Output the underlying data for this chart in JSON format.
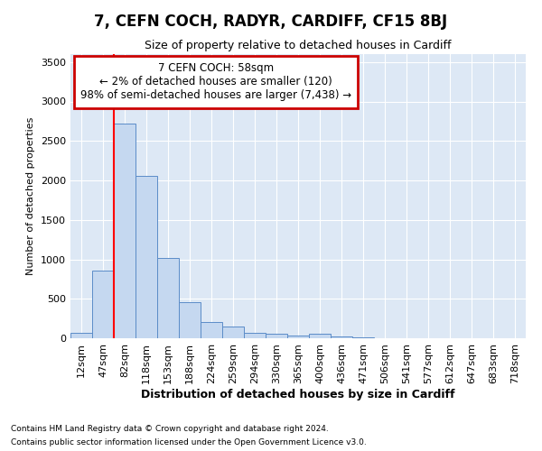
{
  "title": "7, CEFN COCH, RADYR, CARDIFF, CF15 8BJ",
  "subtitle": "Size of property relative to detached houses in Cardiff",
  "xlabel": "Distribution of detached houses by size in Cardiff",
  "ylabel": "Number of detached properties",
  "footnote1": "Contains HM Land Registry data © Crown copyright and database right 2024.",
  "footnote2": "Contains public sector information licensed under the Open Government Licence v3.0.",
  "bar_labels": [
    "12sqm",
    "47sqm",
    "82sqm",
    "118sqm",
    "153sqm",
    "188sqm",
    "224sqm",
    "259sqm",
    "294sqm",
    "330sqm",
    "365sqm",
    "400sqm",
    "436sqm",
    "471sqm",
    "506sqm",
    "541sqm",
    "577sqm",
    "612sqm",
    "647sqm",
    "683sqm",
    "718sqm"
  ],
  "bar_values": [
    65,
    855,
    2720,
    2060,
    1020,
    455,
    205,
    145,
    70,
    55,
    40,
    55,
    20,
    8,
    5,
    4,
    3,
    2,
    2,
    1,
    1
  ],
  "bar_color": "#c5d8f0",
  "bar_edgecolor": "#5b8cc8",
  "background_color": "#dde8f5",
  "red_line_x": 1.5,
  "annotation_title": "7 CEFN COCH: 58sqm",
  "annotation_line1": "← 2% of detached houses are smaller (120)",
  "annotation_line2": "98% of semi-detached houses are larger (7,438) →",
  "annotation_box_facecolor": "#ffffff",
  "annotation_box_edgecolor": "#cc0000",
  "ylim": [
    0,
    3600
  ],
  "yticks": [
    0,
    500,
    1000,
    1500,
    2000,
    2500,
    3000,
    3500
  ],
  "title_fontsize": 12,
  "subtitle_fontsize": 9,
  "ylabel_fontsize": 8,
  "xlabel_fontsize": 9,
  "tick_fontsize": 8,
  "footnote_fontsize": 6.5
}
